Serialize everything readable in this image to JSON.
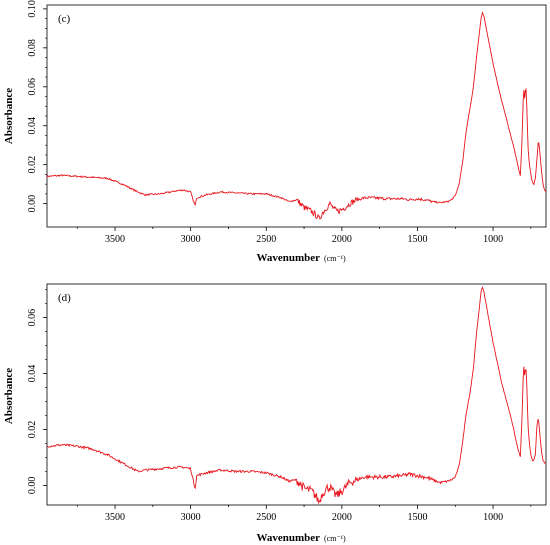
{
  "chart_data": [
    {
      "type": "line",
      "panel_label": "(c)",
      "xlabel": "Wavenumber",
      "xlabel_unit": "(cm⁻¹)",
      "ylabel": "Absorbance",
      "xlim": [
        3950,
        650
      ],
      "ylim": [
        -0.012,
        0.102
      ],
      "x_reversed": true,
      "grid": false,
      "legend": "none",
      "xticks": [
        3500,
        3000,
        2500,
        2000,
        1500,
        1000
      ],
      "yticks": [
        0.0,
        0.02,
        0.04,
        0.06,
        0.08,
        0.1
      ],
      "ytick_labels": [
        "0.00",
        "0.02",
        "0.04",
        "0.06",
        "0.08",
        "0.10"
      ],
      "color": "#e8141c",
      "series": [
        {
          "x": [
            3950,
            3850,
            3750,
            3650,
            3550,
            3450,
            3400,
            3350,
            3300,
            3200,
            3100,
            3050,
            3000,
            2980,
            2970,
            2960,
            2900,
            2800,
            2700,
            2600,
            2500,
            2400,
            2350,
            2300,
            2250,
            2200,
            2170,
            2150,
            2130,
            2100,
            2080,
            2050,
            2030,
            2000,
            1980,
            1950,
            1900,
            1850,
            1800,
            1700,
            1600,
            1550,
            1500,
            1450,
            1400,
            1350,
            1300,
            1275,
            1250,
            1225,
            1200,
            1180,
            1160,
            1150,
            1130,
            1110,
            1090,
            1080,
            1070,
            1060,
            1040,
            1020,
            1000,
            980,
            960,
            940,
            920,
            900,
            880,
            860,
            840,
            820,
            810,
            800,
            795,
            790,
            785,
            780,
            775,
            770,
            760,
            750,
            740,
            730,
            720,
            715,
            710,
            700,
            690,
            680,
            670,
            660,
            650
          ],
          "y": [
            0.014,
            0.0145,
            0.014,
            0.0135,
            0.013,
            0.01,
            0.008,
            0.006,
            0.0045,
            0.005,
            0.0065,
            0.007,
            0.006,
            0.001,
            -0.001,
            0.003,
            0.0045,
            0.006,
            0.0055,
            0.005,
            0.005,
            0.003,
            0.001,
            0.002,
            -0.002,
            -0.004,
            -0.006,
            -0.008,
            -0.005,
            -0.002,
            0.0,
            -0.003,
            -0.004,
            -0.003,
            -0.002,
            0.0,
            0.002,
            0.003,
            0.003,
            0.0025,
            0.0025,
            0.002,
            0.0025,
            0.002,
            0.001,
            0.0005,
            0.001,
            0.002,
            0.004,
            0.01,
            0.022,
            0.036,
            0.046,
            0.05,
            0.06,
            0.075,
            0.088,
            0.095,
            0.098,
            0.096,
            0.088,
            0.08,
            0.072,
            0.065,
            0.058,
            0.052,
            0.046,
            0.04,
            0.034,
            0.028,
            0.021,
            0.014,
            0.03,
            0.055,
            0.059,
            0.052,
            0.061,
            0.057,
            0.046,
            0.03,
            0.02,
            0.015,
            0.011,
            0.01,
            0.013,
            0.018,
            0.023,
            0.033,
            0.026,
            0.017,
            0.01,
            0.007,
            0.006
          ]
        }
      ]
    },
    {
      "type": "line",
      "panel_label": "(d)",
      "xlabel": "Wavenumber",
      "xlabel_unit": "(cm⁻¹)",
      "ylabel": "Absorbance",
      "xlim": [
        3950,
        650
      ],
      "ylim": [
        -0.007,
        0.072
      ],
      "x_reversed": true,
      "grid": false,
      "legend": "none",
      "xticks": [
        3500,
        3000,
        2500,
        2000,
        1500,
        1000
      ],
      "yticks": [
        0.0,
        0.02,
        0.04,
        0.06
      ],
      "ytick_labels": [
        "0.00",
        "0.02",
        "0.04",
        "0.06"
      ],
      "color": "#e8141c",
      "series": [
        {
          "x": [
            3950,
            3850,
            3750,
            3650,
            3550,
            3450,
            3400,
            3350,
            3300,
            3200,
            3100,
            3050,
            3000,
            2980,
            2970,
            2960,
            2900,
            2800,
            2700,
            2600,
            2500,
            2400,
            2350,
            2300,
            2250,
            2200,
            2170,
            2150,
            2130,
            2100,
            2080,
            2050,
            2030,
            2000,
            1980,
            1950,
            1900,
            1850,
            1800,
            1700,
            1600,
            1550,
            1500,
            1450,
            1400,
            1350,
            1300,
            1275,
            1250,
            1225,
            1200,
            1180,
            1160,
            1150,
            1130,
            1110,
            1090,
            1080,
            1070,
            1060,
            1040,
            1020,
            1000,
            980,
            960,
            940,
            920,
            900,
            880,
            860,
            840,
            820,
            810,
            800,
            795,
            790,
            785,
            780,
            775,
            770,
            760,
            750,
            740,
            730,
            720,
            715,
            710,
            700,
            690,
            680,
            670,
            660,
            650
          ],
          "y": [
            0.014,
            0.0145,
            0.014,
            0.013,
            0.011,
            0.008,
            0.0065,
            0.005,
            0.0055,
            0.006,
            0.0065,
            0.0065,
            0.006,
            0.001,
            -0.001,
            0.0035,
            0.0045,
            0.0055,
            0.005,
            0.005,
            0.0045,
            0.003,
            0.0015,
            0.002,
            -0.001,
            -0.002,
            -0.004,
            -0.006,
            -0.003,
            -0.001,
            -0.0005,
            -0.003,
            -0.0035,
            -0.002,
            -0.001,
            0.001,
            0.002,
            0.003,
            0.003,
            0.003,
            0.0035,
            0.004,
            0.0035,
            0.003,
            0.002,
            0.001,
            0.0015,
            0.002,
            0.003,
            0.007,
            0.016,
            0.025,
            0.031,
            0.034,
            0.042,
            0.054,
            0.064,
            0.069,
            0.071,
            0.069,
            0.063,
            0.057,
            0.051,
            0.046,
            0.041,
            0.036,
            0.032,
            0.028,
            0.024,
            0.019,
            0.014,
            0.01,
            0.022,
            0.04,
            0.043,
            0.038,
            0.043,
            0.04,
            0.033,
            0.022,
            0.015,
            0.011,
            0.009,
            0.009,
            0.011,
            0.016,
            0.022,
            0.024,
            0.018,
            0.012,
            0.009,
            0.008,
            0.008
          ]
        }
      ]
    }
  ]
}
